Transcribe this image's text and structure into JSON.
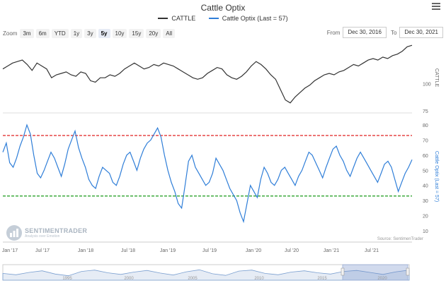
{
  "title": "Cattle Optix",
  "legend": [
    {
      "label": "CATTLE",
      "color": "#333333"
    },
    {
      "label": "Cattle Optix (Last = 57)",
      "color": "#2f7ed8"
    }
  ],
  "toolbar": {
    "zoom_label": "Zoom",
    "ranges": [
      "3m",
      "6m",
      "YTD",
      "1y",
      "3y",
      "5y",
      "10y",
      "15y",
      "20y",
      "All"
    ],
    "active_range": "5y",
    "from_label": "From",
    "from_date": "Dec 30, 2016",
    "to_label": "To",
    "to_date": "Dec 30, 2021"
  },
  "branding": {
    "name": "SENTIMENTRADER",
    "tagline": "Analysis over Emotion"
  },
  "credits": "Source: SentimenTrader",
  "chart_data": [
    {
      "type": "line",
      "name": "cattle-price-panel",
      "series": [
        {
          "name": "CATTLE",
          "color": "#333333",
          "values": [
            110,
            112,
            114,
            115,
            116,
            113,
            109,
            114,
            112,
            110,
            104,
            106,
            107,
            108,
            106,
            105,
            108,
            107,
            102,
            101,
            104,
            104,
            106,
            105,
            107,
            110,
            112,
            114,
            112,
            110,
            111,
            113,
            112,
            114,
            113,
            112,
            110,
            108,
            106,
            104,
            103,
            104,
            107,
            109,
            111,
            110,
            106,
            104,
            103,
            105,
            108,
            112,
            115,
            113,
            110,
            106,
            103,
            96,
            89,
            87,
            91,
            94,
            97,
            99,
            102,
            104,
            106,
            107,
            106,
            108,
            109,
            111,
            113,
            112,
            114,
            116,
            117,
            116,
            118,
            117,
            119,
            120,
            122,
            125,
            126
          ]
        }
      ],
      "x_start": "Jan 2017",
      "x_end": "Dec 2021",
      "y_axis_label": "CATTLE",
      "y_ticks": [
        100
      ],
      "ylim": [
        85,
        128
      ]
    },
    {
      "type": "line",
      "name": "optix-panel",
      "series": [
        {
          "name": "Cattle Optix (Last = 57)",
          "color": "#2f7ed8",
          "values": [
            62,
            68,
            55,
            52,
            58,
            66,
            72,
            80,
            74,
            60,
            48,
            45,
            50,
            56,
            62,
            58,
            52,
            46,
            54,
            64,
            70,
            76,
            65,
            58,
            52,
            44,
            40,
            38,
            46,
            52,
            50,
            48,
            42,
            40,
            46,
            54,
            60,
            62,
            56,
            50,
            58,
            64,
            68,
            70,
            74,
            78,
            72,
            60,
            50,
            42,
            36,
            28,
            25,
            40,
            56,
            60,
            52,
            48,
            44,
            40,
            42,
            48,
            58,
            54,
            50,
            44,
            38,
            34,
            30,
            22,
            16,
            28,
            40,
            36,
            32,
            44,
            52,
            48,
            42,
            40,
            44,
            50,
            52,
            48,
            44,
            40,
            46,
            50,
            56,
            62,
            60,
            55,
            50,
            45,
            52,
            58,
            64,
            66,
            60,
            56,
            50,
            46,
            52,
            58,
            62,
            58,
            54,
            50,
            46,
            42,
            48,
            54,
            56,
            52,
            44,
            36,
            42,
            48,
            52,
            57
          ]
        }
      ],
      "x_ticks": [
        "Jan '17",
        "Jul '17",
        "Jan '18",
        "Jul '18",
        "Jan '19",
        "Jul '19",
        "Jan '20",
        "Jul '20",
        "Jan '21",
        "Jul '21"
      ],
      "y_ticks": [
        10,
        20,
        30,
        40,
        50,
        60,
        70,
        80
      ],
      "y_top_tick": 75,
      "ylim": [
        10,
        80
      ],
      "y_axis_label": "Cattle Optix (Last = 57)",
      "reference_lines": [
        {
          "value": 73,
          "color": "#e02020",
          "style": "dashed"
        },
        {
          "value": 33,
          "color": "#1a9a1a",
          "style": "dashed"
        }
      ]
    },
    {
      "type": "area",
      "name": "navigator",
      "values": [
        52,
        48,
        55,
        60,
        50,
        45,
        58,
        62,
        54,
        49,
        56,
        61,
        53,
        47,
        57,
        63,
        51,
        46,
        59,
        62,
        52,
        48,
        56,
        60,
        54,
        50,
        58,
        61,
        55,
        49,
        57,
        62
      ],
      "x_ticks": [
        "1995",
        "2000",
        "2005",
        "2010",
        "2015",
        "2020"
      ],
      "selected_range": [
        "2017",
        "2021"
      ]
    }
  ]
}
